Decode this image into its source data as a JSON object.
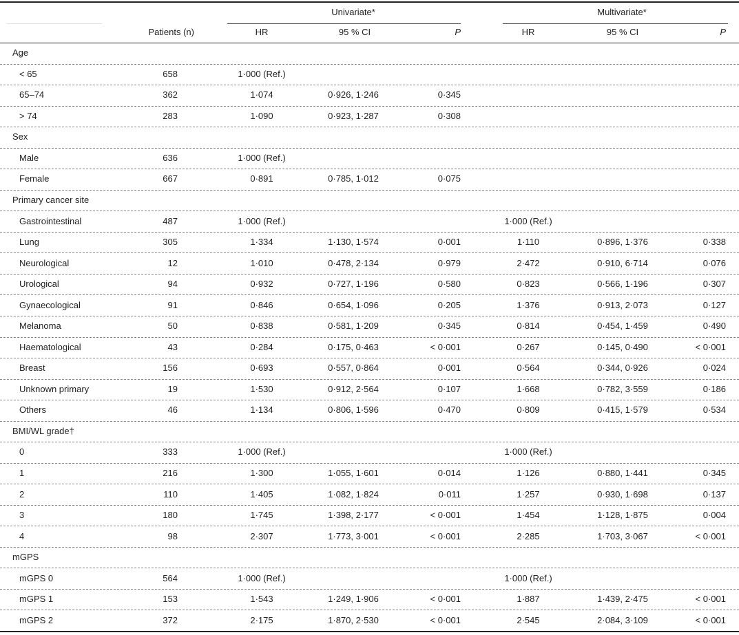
{
  "header": {
    "univariate": "Univariate*",
    "multivariate": "Multivariate*",
    "columns": [
      "Patients (n)",
      "HR",
      "95 % CI",
      "P",
      "HR",
      "95 % CI",
      "P"
    ]
  },
  "rows": [
    {
      "label": "Age"
    },
    {
      "label": "< 65",
      "n": 658,
      "uni": [
        "1·000 (Ref.)"
      ]
    },
    {
      "label": "65–74",
      "n": 362,
      "uni": [
        "1·074",
        "0·926, 1·246",
        "0·345"
      ]
    },
    {
      "label": "> 74",
      "n": 283,
      "uni": [
        "1·090",
        "0·923, 1·287",
        "0·308"
      ]
    },
    {
      "label": "Sex"
    },
    {
      "label": "Male",
      "n": 636,
      "uni": [
        "1·000 (Ref.)"
      ]
    },
    {
      "label": "Female",
      "n": 667,
      "uni": [
        "0·891",
        "0·785, 1·012",
        "0·075"
      ]
    },
    {
      "label": "Primary cancer site"
    },
    {
      "label": "Gastrointestinal",
      "n": 487,
      "uni": [
        "1·000 (Ref.)"
      ],
      "multi": [
        "1·000 (Ref.)"
      ]
    },
    {
      "label": "Lung",
      "n": 305,
      "uni": [
        "1·334",
        "1·130, 1·574",
        "0·001"
      ],
      "multi": [
        "1·110",
        "0·896, 1·376",
        "0·338"
      ]
    },
    {
      "label": "Neurological",
      "n": 12,
      "uni": [
        "1·010",
        "0·478, 2·134",
        "0·979"
      ],
      "multi": [
        "2·472",
        "0·910, 6·714",
        "0·076"
      ]
    },
    {
      "label": "Urological",
      "n": 94,
      "uni": [
        "0·932",
        "0·727, 1·196",
        "0·580"
      ],
      "multi": [
        "0·823",
        "0·566, 1·196",
        "0·307"
      ]
    },
    {
      "label": "Gynaecological",
      "n": 91,
      "uni": [
        "0·846",
        "0·654, 1·096",
        "0·205"
      ],
      "multi": [
        "1·376",
        "0·913, 2·073",
        "0·127"
      ]
    },
    {
      "label": "Melanoma",
      "n": 50,
      "uni": [
        "0·838",
        "0·581, 1·209",
        "0·345"
      ],
      "multi": [
        "0·814",
        "0·454, 1·459",
        "0·490"
      ]
    },
    {
      "label": "Haematological",
      "n": 43,
      "uni": [
        "0·284",
        "0·175, 0·463",
        "< 0·001"
      ],
      "multi": [
        "0·267",
        "0·145, 0·490",
        "< 0·001"
      ]
    },
    {
      "label": "Breast",
      "n": 156,
      "uni": [
        "0·693",
        "0·557, 0·864",
        "0·001"
      ],
      "multi": [
        "0·564",
        "0·344, 0·926",
        "0·024"
      ]
    },
    {
      "label": "Unknown primary",
      "n": 19,
      "uni": [
        "1·530",
        "0·912, 2·564",
        "0·107"
      ],
      "multi": [
        "1·668",
        "0·782, 3·559",
        "0·186"
      ]
    },
    {
      "label": "Others",
      "n": 46,
      "uni": [
        "1·134",
        "0·806, 1·596",
        "0·470"
      ],
      "multi": [
        "0·809",
        "0·415, 1·579",
        "0·534"
      ]
    },
    {
      "label": "BMI/WL grade†"
    },
    {
      "label": "0",
      "n": 333,
      "uni": [
        "1·000 (Ref.)"
      ],
      "multi": [
        "1·000 (Ref.)"
      ]
    },
    {
      "label": "1",
      "n": 216,
      "uni": [
        "1·300",
        "1·055, 1·601",
        "0·014"
      ],
      "multi": [
        "1·126",
        "0·880, 1·441",
        "0·345"
      ]
    },
    {
      "label": "2",
      "n": 110,
      "uni": [
        "1·405",
        "1·082, 1·824",
        "0·011"
      ],
      "multi": [
        "1·257",
        "0·930, 1·698",
        "0·137"
      ]
    },
    {
      "label": "3",
      "n": 180,
      "uni": [
        "1·745",
        "1·398, 2·177",
        "< 0·001"
      ],
      "multi": [
        "1·454",
        "1·128, 1·875",
        "0·004"
      ]
    },
    {
      "label": "4",
      "n": 98,
      "uni": [
        "2·307",
        "1·773, 3·001",
        "< 0·001"
      ],
      "multi": [
        "2·285",
        "1·703, 3·067",
        "< 0·001"
      ]
    },
    {
      "label": "mGPS"
    },
    {
      "label": "mGPS 0",
      "n": 564,
      "uni": [
        "1·000 (Ref.)"
      ],
      "multi": [
        "1·000 (Ref.)"
      ]
    },
    {
      "label": "mGPS 1",
      "n": 153,
      "uni": [
        "1·543",
        "1·249, 1·906",
        "< 0·001"
      ],
      "multi": [
        "1·887",
        "1·439, 2·475",
        "< 0·001"
      ]
    },
    {
      "label": "mGPS 2",
      "n": 372,
      "uni": [
        "2·175",
        "1·870, 2·530",
        "< 0·001"
      ],
      "multi": [
        "2·545",
        "2·084, 3·109",
        "< 0·001"
      ]
    }
  ]
}
